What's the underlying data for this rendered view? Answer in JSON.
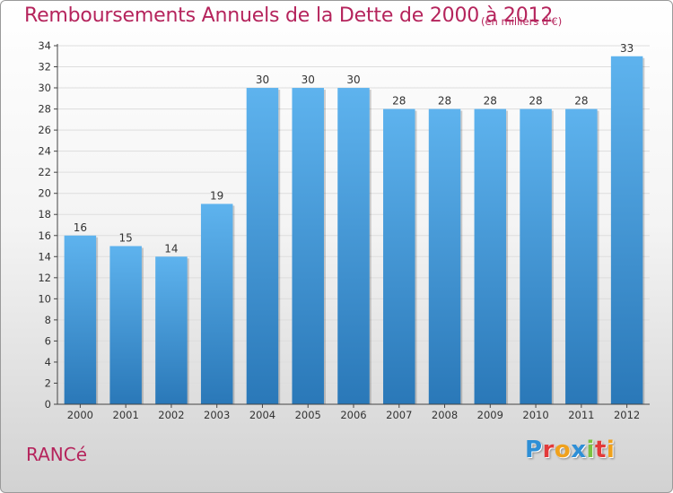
{
  "header": {
    "title": "Remboursements Annuels de la Dette de 2000 à 2012",
    "subtitle": "(en milliers d'€)"
  },
  "footer": {
    "place": "RANCé",
    "logo_text": "Proxiti",
    "logo_letters": [
      {
        "ch": "P",
        "color": "#2e8fd6"
      },
      {
        "ch": "r",
        "color": "#e23a3a"
      },
      {
        "ch": "o",
        "color": "#f0a11c"
      },
      {
        "ch": "x",
        "color": "#2e8fd6"
      },
      {
        "ch": "i",
        "color": "#7cc242"
      },
      {
        "ch": "t",
        "color": "#e23a3a"
      },
      {
        "ch": "i",
        "color": "#f0a11c"
      }
    ]
  },
  "colors": {
    "accent": "#b5245c",
    "bar_top": "#5eb3ee",
    "bar_bottom": "#2a78b8",
    "axis": "#444444",
    "grid": "#dddddd"
  },
  "chart_data": {
    "type": "bar",
    "categories": [
      "2000",
      "2001",
      "2002",
      "2003",
      "2004",
      "2005",
      "2006",
      "2007",
      "2008",
      "2009",
      "2010",
      "2011",
      "2012"
    ],
    "values": [
      16,
      15,
      14,
      19,
      30,
      30,
      30,
      28,
      28,
      28,
      28,
      28,
      33
    ],
    "title": "Remboursements Annuels de la Dette de 2000 à 2012",
    "ylim": [
      0,
      34
    ],
    "yticks": [
      0,
      2,
      4,
      6,
      8,
      10,
      12,
      14,
      16,
      18,
      20,
      22,
      24,
      26,
      28,
      30,
      32,
      34
    ],
    "grid": true,
    "legend": "none"
  }
}
